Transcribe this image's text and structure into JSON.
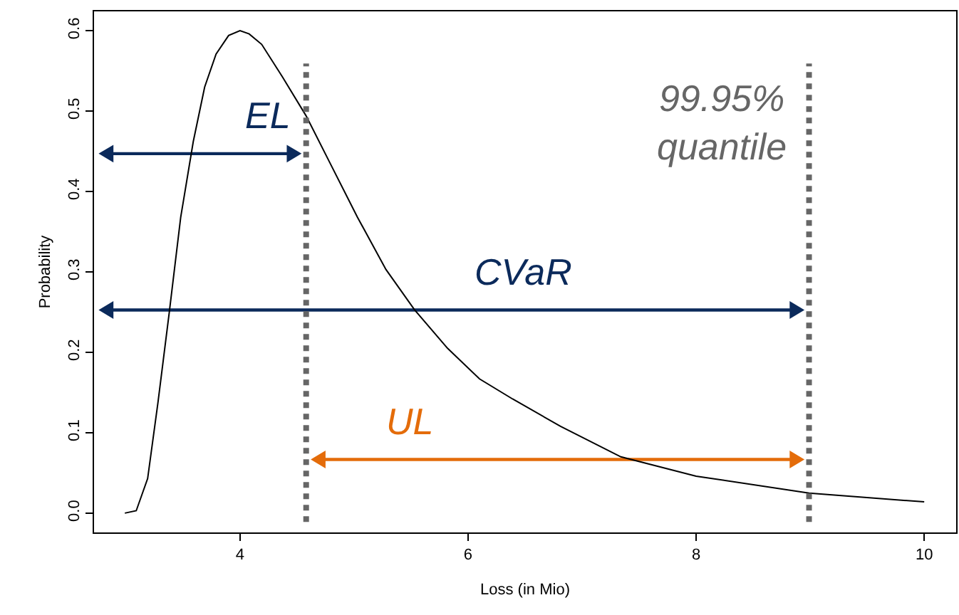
{
  "chart_data": {
    "type": "line",
    "xlabel": "Loss (in Mio)",
    "ylabel": "Probability",
    "xlim": [
      2.72,
      10.28
    ],
    "ylim": [
      -0.024,
      0.624
    ],
    "xticks": [
      4,
      6,
      8,
      10
    ],
    "yticks": [
      {
        "value": 0,
        "label": "0.0"
      },
      0.1,
      0.2,
      0.3,
      0.4,
      0.5,
      0.6
    ],
    "grid": false,
    "marker": "none",
    "line_style": "solid",
    "series": [
      {
        "color": "#000000",
        "x": [
          2.99,
          3.09,
          3.19,
          3.28,
          3.38,
          3.48,
          3.59,
          3.69,
          3.79,
          3.9,
          4.0,
          4.08,
          4.19,
          4.37,
          4.58,
          4.78,
          5.03,
          5.28,
          5.53,
          5.82,
          6.1,
          6.39,
          6.81,
          7.34,
          8.0,
          8.99,
          10.0
        ],
        "values": [
          0.0,
          0.003,
          0.043,
          0.137,
          0.25,
          0.368,
          0.462,
          0.53,
          0.571,
          0.594,
          0.6,
          0.596,
          0.583,
          0.543,
          0.494,
          0.438,
          0.368,
          0.303,
          0.253,
          0.205,
          0.167,
          0.142,
          0.108,
          0.07,
          0.046,
          0.025,
          0.014
        ]
      }
    ],
    "annotations": [
      "EL",
      "CVaR",
      "UL"
    ],
    "ref_lines": [
      {
        "axis": "x",
        "value": 4.58,
        "color": "#666666",
        "line_style": "dotted"
      },
      {
        "axis": "x",
        "value": 8.99,
        "label": "99.95%\nquantile",
        "color": "#666666",
        "line_style": "dotted"
      }
    ]
  }
}
